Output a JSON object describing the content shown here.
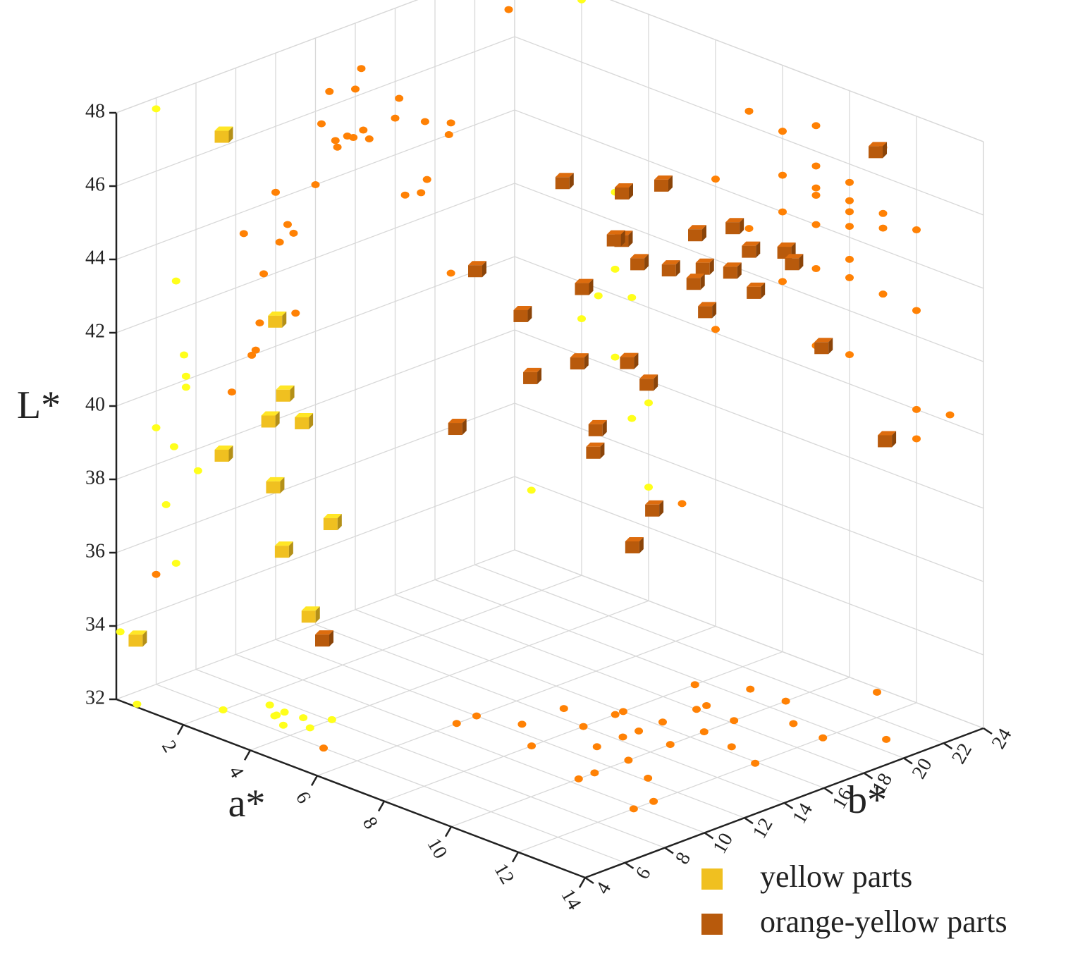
{
  "chart_data": {
    "type": "scatter3d",
    "xlabel": "a*",
    "ylabel": "b*",
    "zlabel": "L*",
    "xlim": [
      0,
      14
    ],
    "ylim": [
      4,
      24
    ],
    "zlim": [
      32,
      48
    ],
    "xticks": [
      2,
      4,
      6,
      8,
      10,
      12,
      14
    ],
    "yticks": [
      4,
      6,
      8,
      10,
      12,
      14,
      16,
      18,
      20,
      22,
      24
    ],
    "zticks": [
      32,
      34,
      36,
      38,
      40,
      42,
      44,
      46,
      48
    ],
    "grid": true,
    "legend": "lower right",
    "series": [
      {
        "name": "yellow parts",
        "color": "#f0c020",
        "x": [
          2,
          0.5,
          3,
          3,
          2.5,
          3.5,
          2,
          3,
          4,
          3.5,
          4
        ],
        "y": [
          6,
          4.2,
          7,
          7.4,
          7.5,
          7.5,
          6,
          6.9,
          8.1,
          6.5,
          7
        ],
        "z": [
          47.7,
          33.8,
          42.8,
          40.7,
          39.8,
          40.1,
          39.0,
          38.3,
          37.4,
          36.8,
          35.1
        ]
      },
      {
        "name": "orange-yellow parts",
        "color": "#b85a0c",
        "x": [
          5,
          6,
          6,
          7,
          8,
          7,
          8,
          9,
          9,
          8,
          9,
          10,
          9,
          10,
          11,
          8,
          9,
          10,
          10,
          11,
          8,
          9,
          12,
          10,
          10,
          11,
          9,
          10,
          12,
          12,
          12,
          11,
          13
        ],
        "y": [
          6,
          12,
          11,
          12.6,
          11.4,
          14.7,
          16,
          16.3,
          14.3,
          15.6,
          18,
          18.2,
          20.7,
          20.8,
          19.5,
          14,
          15.1,
          15,
          16.7,
          16.4,
          19.6,
          18.5,
          15.9,
          10.4,
          12.9,
          12.2,
          13,
          11.2,
          10.8,
          9.8,
          19.3,
          23.7,
          20.8
        ],
        "z": [
          35.0,
          44.2,
          40.1,
          43.2,
          42.1,
          46.4,
          46.2,
          46.7,
          45.6,
          45.0,
          45.0,
          45.5,
          44.0,
          44.3,
          44.6,
          44.0,
          44.8,
          45.0,
          44.7,
          45.0,
          43.0,
          42.8,
          44.9,
          43.4,
          42.9,
          42.8,
          40.7,
          40.8,
          40.0,
          39.2,
          42.7,
          46.8,
          40.2
        ]
      }
    ]
  }
}
